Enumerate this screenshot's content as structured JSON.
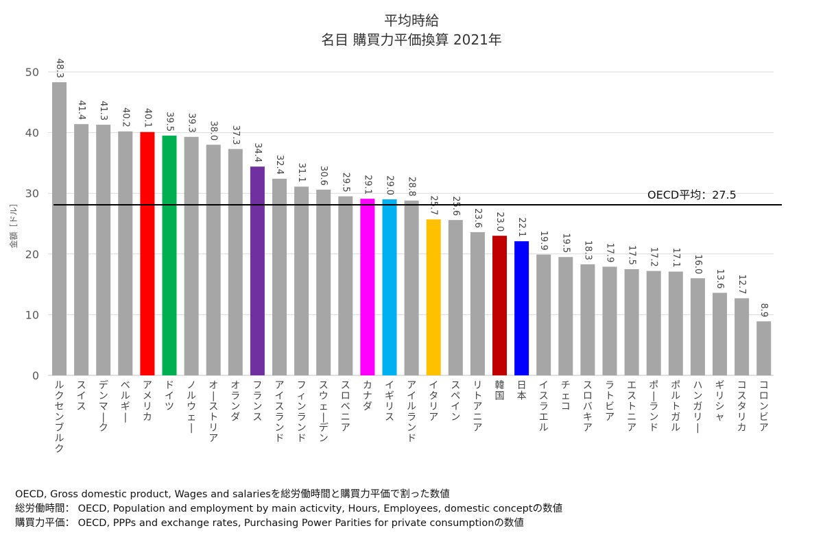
{
  "chart_data": {
    "type": "bar",
    "title": "平均時給",
    "subtitle": "名目 購買力平価換算 2021年",
    "ylabel": "金額［ドル］",
    "xlabel": "",
    "ylim": [
      0,
      50
    ],
    "yticks": [
      0,
      10,
      20,
      30,
      40,
      50
    ],
    "grid": true,
    "categories": [
      "ルクセンブルク",
      "スイス",
      "デンマーク",
      "ベルギー",
      "アメリカ",
      "ドイツ",
      "ノルウェー",
      "オーストリア",
      "オランダ",
      "フランス",
      "アイスランド",
      "フィンランド",
      "スウェーデン",
      "スロベニア",
      "カナダ",
      "イギリス",
      "アイルランド",
      "イタリア",
      "スペイン",
      "リトアニア",
      "韓国",
      "日本",
      "イスラエル",
      "チェコ",
      "スロバキア",
      "ラトビア",
      "エストニア",
      "ポーランド",
      "ポルトガル",
      "ハンガリー",
      "ギリシャ",
      "コスタリカ",
      "コロンビア"
    ],
    "values": [
      48.3,
      41.4,
      41.3,
      40.2,
      40.1,
      39.5,
      39.3,
      38.0,
      37.3,
      34.4,
      32.4,
      31.1,
      30.6,
      29.5,
      29.1,
      29.0,
      28.8,
      25.7,
      25.6,
      23.6,
      23.0,
      22.1,
      19.9,
      19.5,
      18.3,
      17.9,
      17.5,
      17.2,
      17.1,
      16.0,
      13.6,
      12.7,
      8.9
    ],
    "value_labels": [
      "48.3",
      "41.4",
      "41.3",
      "40.2",
      "40.1",
      "39.5",
      "39.3",
      "38.0",
      "37.3",
      "34.4",
      "32.4",
      "31.1",
      "30.6",
      "29.5",
      "29.1",
      "29.0",
      "28.8",
      "25.7",
      "25.6",
      "23.6",
      "23.0",
      "22.1",
      "19.9",
      "19.5",
      "18.3",
      "17.9",
      "17.5",
      "17.2",
      "17.1",
      "16.0",
      "13.6",
      "12.7",
      "8.9"
    ],
    "colors": [
      "#a6a6a6",
      "#a6a6a6",
      "#a6a6a6",
      "#a6a6a6",
      "#ff0000",
      "#00b050",
      "#a6a6a6",
      "#a6a6a6",
      "#a6a6a6",
      "#7030a0",
      "#a6a6a6",
      "#a6a6a6",
      "#a6a6a6",
      "#a6a6a6",
      "#ff00ff",
      "#00b0f0",
      "#a6a6a6",
      "#ffc000",
      "#a6a6a6",
      "#a6a6a6",
      "#c00000",
      "#0000ff",
      "#a6a6a6",
      "#a6a6a6",
      "#a6a6a6",
      "#a6a6a6",
      "#a6a6a6",
      "#a6a6a6",
      "#a6a6a6",
      "#a6a6a6",
      "#a6a6a6",
      "#a6a6a6",
      "#a6a6a6"
    ],
    "reference_line": {
      "label": "OECD平均：27.5",
      "value": 27.5
    }
  },
  "notes": [
    "OECD, Gross domestic product, Wages and salariesを総労働時間と購買力平価で割った数値",
    "総労働時間： OECD, Population and employment by main acticvity, Hours, Employees, domestic conceptの数値",
    "購買力平価： OECD, PPPs and exchange rates, Purchasing Power Parities for private consumptionの数値"
  ]
}
